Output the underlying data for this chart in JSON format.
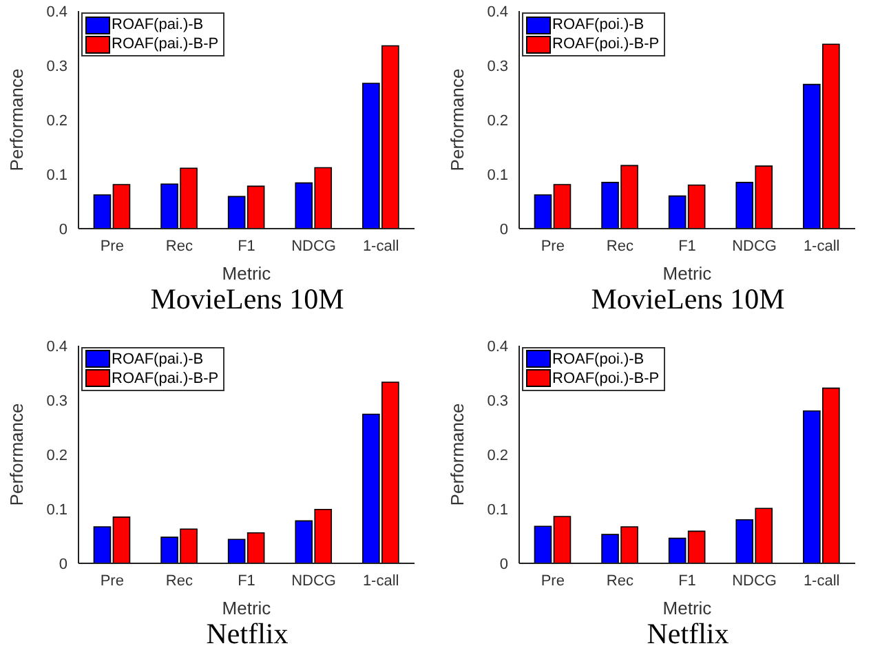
{
  "chart_data": [
    {
      "type": "bar",
      "title": "MovieLens 10M",
      "xlabel": "Metric",
      "ylabel": "Performance",
      "categories": [
        "Pre",
        "Rec",
        "F1",
        "NDCG",
        "1-call"
      ],
      "ylim": [
        0,
        0.4
      ],
      "yticks": [
        0,
        0.1,
        0.2,
        0.3,
        0.4
      ],
      "legend": "top left",
      "series": [
        {
          "name": "ROAF(pai.)-B",
          "color": "#0000ff",
          "values": [
            0.062,
            0.082,
            0.059,
            0.084,
            0.267
          ]
        },
        {
          "name": "ROAF(pai.)-B-P",
          "color": "#ff0000",
          "values": [
            0.081,
            0.111,
            0.078,
            0.112,
            0.336
          ]
        }
      ]
    },
    {
      "type": "bar",
      "title": "MovieLens 10M",
      "xlabel": "Metric",
      "ylabel": "Performance",
      "categories": [
        "Pre",
        "Rec",
        "F1",
        "NDCG",
        "1-call"
      ],
      "ylim": [
        0,
        0.4
      ],
      "yticks": [
        0,
        0.1,
        0.2,
        0.3,
        0.4
      ],
      "legend": "top left",
      "series": [
        {
          "name": "ROAF(poi.)-B",
          "color": "#0000ff",
          "values": [
            0.062,
            0.085,
            0.06,
            0.085,
            0.265
          ]
        },
        {
          "name": "ROAF(poi.)-B-P",
          "color": "#ff0000",
          "values": [
            0.081,
            0.116,
            0.08,
            0.115,
            0.339
          ]
        }
      ]
    },
    {
      "type": "bar",
      "title": "Netflix",
      "xlabel": "Metric",
      "ylabel": "Performance",
      "categories": [
        "Pre",
        "Rec",
        "F1",
        "NDCG",
        "1-call"
      ],
      "ylim": [
        0,
        0.4
      ],
      "yticks": [
        0,
        0.1,
        0.2,
        0.3,
        0.4
      ],
      "legend": "top left",
      "series": [
        {
          "name": "ROAF(pai.)-B",
          "color": "#0000ff",
          "values": [
            0.067,
            0.048,
            0.044,
            0.078,
            0.274
          ]
        },
        {
          "name": "ROAF(pai.)-B-P",
          "color": "#ff0000",
          "values": [
            0.085,
            0.063,
            0.056,
            0.099,
            0.333
          ]
        }
      ]
    },
    {
      "type": "bar",
      "title": "Netflix",
      "xlabel": "Metric",
      "ylabel": "Performance",
      "categories": [
        "Pre",
        "Rec",
        "F1",
        "NDCG",
        "1-call"
      ],
      "ylim": [
        0,
        0.4
      ],
      "yticks": [
        0,
        0.1,
        0.2,
        0.3,
        0.4
      ],
      "legend": "top left",
      "series": [
        {
          "name": "ROAF(poi.)-B",
          "color": "#0000ff",
          "values": [
            0.068,
            0.053,
            0.046,
            0.08,
            0.28
          ]
        },
        {
          "name": "ROAF(poi.)-B-P",
          "color": "#ff0000",
          "values": [
            0.086,
            0.067,
            0.059,
            0.101,
            0.322
          ]
        }
      ]
    }
  ]
}
